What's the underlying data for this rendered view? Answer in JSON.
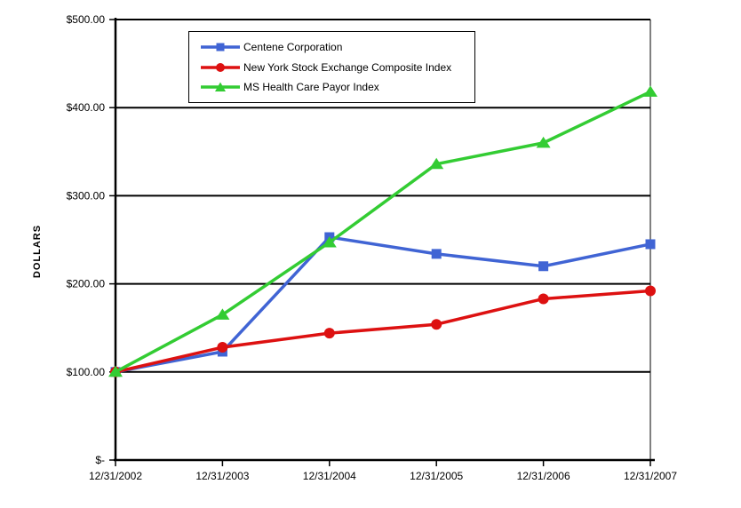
{
  "page": {
    "background_color": "#ffffff",
    "axis_color": "#000000",
    "grid_color": "#000000"
  },
  "chart_data": {
    "type": "line",
    "title": "",
    "xlabel": "",
    "ylabel": "DOLLARS",
    "ylim": [
      0,
      500
    ],
    "grid": "horizontal",
    "legend_position": "top-left-inside",
    "y_tick_values": [
      500,
      400,
      300,
      200,
      100,
      0
    ],
    "y_tick_labels": [
      "$500.00",
      "$400.00",
      "$300.00",
      "$200.00",
      "$100.00",
      "$-"
    ],
    "categories": [
      "12/31/2002",
      "12/31/2003",
      "12/31/2004",
      "12/31/2005",
      "12/31/2006",
      "12/31/2007"
    ],
    "series": [
      {
        "name": "Centene Corporation",
        "color": "#4064d4",
        "marker": "square",
        "values": [
          100,
          123,
          253,
          234,
          220,
          245
        ]
      },
      {
        "name": "New York Stock Exchange Composite Index",
        "color": "#dd1111",
        "marker": "circle",
        "values": [
          100,
          128,
          144,
          154,
          183,
          192
        ]
      },
      {
        "name": "MS Health Care Payor Index",
        "color": "#33cc33",
        "marker": "triangle",
        "values": [
          100,
          165,
          247,
          336,
          360,
          418
        ]
      }
    ]
  }
}
